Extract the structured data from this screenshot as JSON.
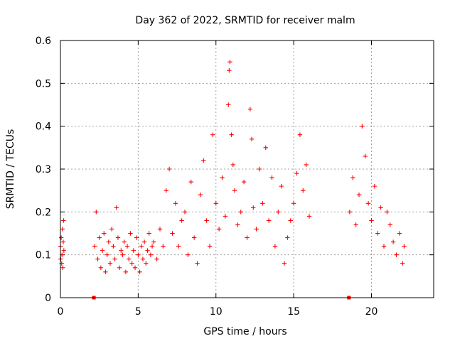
{
  "chart_data": {
    "type": "scatter",
    "title": "Day 362 of 2022, SRMTID for receiver malm",
    "xlabel": "GPS time / hours",
    "ylabel": "SRMTID / TECUs",
    "xlim": [
      0,
      24
    ],
    "ylim": [
      0,
      0.6
    ],
    "xticks": [
      0,
      5,
      10,
      15,
      20
    ],
    "xtick_labels": [
      "0",
      "5",
      "10",
      "15",
      "20"
    ],
    "yticks": [
      0,
      0.1,
      0.2,
      0.3,
      0.4,
      0.5,
      0.6
    ],
    "ytick_labels": [
      "0",
      "0.1",
      "0.2",
      "0.3",
      "0.4",
      "0.5",
      "0.6"
    ],
    "grid": true,
    "marker": "+",
    "series_color": "#ff0000",
    "gap_marker_color": "#ff0000",
    "data_gap_markers": [
      2.15,
      18.55
    ],
    "series": [
      {
        "name": "SRMTID",
        "x": [
          0.0,
          0.02,
          0.05,
          0.08,
          0.1,
          0.13,
          0.15,
          0.18,
          0.2,
          0.22,
          2.2,
          2.3,
          2.4,
          2.5,
          2.6,
          2.7,
          2.8,
          2.9,
          3.0,
          3.1,
          3.2,
          3.3,
          3.4,
          3.5,
          3.6,
          3.7,
          3.8,
          3.9,
          4.0,
          4.1,
          4.2,
          4.3,
          4.4,
          4.5,
          4.6,
          4.7,
          4.8,
          4.9,
          5.0,
          5.1,
          5.2,
          5.3,
          5.4,
          5.5,
          5.6,
          5.7,
          5.8,
          5.9,
          6.0,
          6.2,
          6.4,
          6.6,
          6.8,
          7.0,
          7.2,
          7.4,
          7.6,
          7.8,
          8.0,
          8.2,
          8.4,
          8.6,
          8.8,
          9.0,
          9.2,
          9.4,
          9.6,
          9.8,
          10.0,
          10.2,
          10.4,
          10.6,
          10.8,
          10.85,
          10.9,
          11.0,
          11.1,
          11.2,
          11.4,
          11.6,
          11.8,
          12.0,
          12.2,
          12.3,
          12.4,
          12.6,
          12.8,
          13.0,
          13.2,
          13.4,
          13.6,
          13.8,
          14.0,
          14.2,
          14.4,
          14.6,
          14.8,
          15.0,
          15.2,
          15.4,
          15.6,
          15.8,
          16.0,
          18.6,
          18.8,
          19.0,
          19.2,
          19.4,
          19.6,
          19.8,
          20.0,
          20.2,
          20.4,
          20.6,
          20.8,
          21.0,
          21.2,
          21.4,
          21.6,
          21.8,
          22.0,
          22.1
        ],
        "y": [
          0.12,
          0.09,
          0.14,
          0.08,
          0.1,
          0.16,
          0.07,
          0.13,
          0.18,
          0.11,
          0.12,
          0.2,
          0.09,
          0.14,
          0.07,
          0.11,
          0.15,
          0.06,
          0.1,
          0.13,
          0.08,
          0.16,
          0.12,
          0.09,
          0.21,
          0.14,
          0.07,
          0.11,
          0.1,
          0.13,
          0.06,
          0.12,
          0.09,
          0.15,
          0.08,
          0.11,
          0.07,
          0.14,
          0.1,
          0.06,
          0.12,
          0.09,
          0.13,
          0.08,
          0.11,
          0.15,
          0.1,
          0.12,
          0.13,
          0.09,
          0.16,
          0.12,
          0.25,
          0.3,
          0.15,
          0.22,
          0.12,
          0.18,
          0.2,
          0.1,
          0.27,
          0.14,
          0.08,
          0.24,
          0.32,
          0.18,
          0.12,
          0.38,
          0.22,
          0.16,
          0.28,
          0.19,
          0.45,
          0.53,
          0.55,
          0.38,
          0.31,
          0.25,
          0.17,
          0.2,
          0.27,
          0.14,
          0.44,
          0.37,
          0.21,
          0.16,
          0.3,
          0.22,
          0.35,
          0.18,
          0.28,
          0.12,
          0.2,
          0.26,
          0.08,
          0.14,
          0.18,
          0.22,
          0.29,
          0.38,
          0.25,
          0.31,
          0.19,
          0.2,
          0.28,
          0.17,
          0.24,
          0.4,
          0.33,
          0.22,
          0.18,
          0.26,
          0.15,
          0.21,
          0.12,
          0.2,
          0.17,
          0.13,
          0.1,
          0.15,
          0.08,
          0.12
        ]
      }
    ]
  }
}
